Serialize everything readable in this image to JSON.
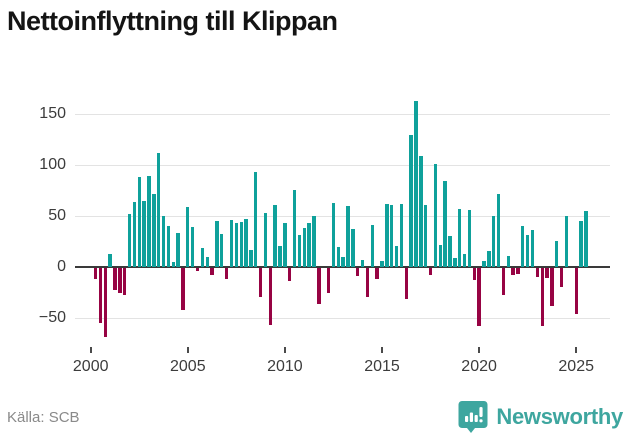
{
  "title": "Nettoinflyttning till Klippan",
  "source": "Källa: SCB",
  "brand": {
    "name": "Newsworthy",
    "logo_icon": "speech-bubble-bar-chart-icon",
    "color": "#3ea69f"
  },
  "colors": {
    "positive_bar": "#0fa19b",
    "negative_bar": "#970343",
    "zero_axis": "#3a3a3a",
    "gridline": "#e3e3e3",
    "axis_text": "#3c3c3c"
  },
  "chart_data": {
    "type": "bar",
    "frequency": "quarterly",
    "start_period": "2000-Q1",
    "end_period": "2025-Q3",
    "title": "Nettoinflyttning till Klippan",
    "xlabel": "",
    "ylabel": "",
    "grid": true,
    "ylim": [
      -75,
      175
    ],
    "yticks": [
      150,
      100,
      50,
      0,
      -50
    ],
    "xticks": [
      2000,
      2005,
      2010,
      2015,
      2020,
      2025
    ],
    "values": [
      0,
      -11,
      -54,
      -68,
      12,
      -22,
      -25,
      -27,
      52,
      64,
      88,
      65,
      89,
      71,
      112,
      50,
      40,
      5,
      33,
      -41,
      59,
      39,
      -3,
      18,
      10,
      -7,
      45,
      32,
      -11,
      46,
      43,
      44,
      47,
      16,
      93,
      -28,
      53,
      -56,
      61,
      20,
      43,
      -13,
      75,
      31,
      38,
      43,
      50,
      -35,
      0,
      -25,
      63,
      19,
      10,
      60,
      37,
      -8,
      7,
      -28,
      41,
      -11,
      6,
      62,
      61,
      20,
      62,
      -30,
      129,
      163,
      109,
      61,
      -7,
      101,
      21,
      84,
      30,
      9,
      57,
      12,
      56,
      -12,
      -57,
      6,
      15,
      50,
      71,
      -27,
      11,
      -7,
      -6,
      40,
      31,
      36,
      -9,
      -57,
      -10,
      -37,
      25,
      -19,
      50,
      0,
      -45,
      45,
      55
    ]
  }
}
